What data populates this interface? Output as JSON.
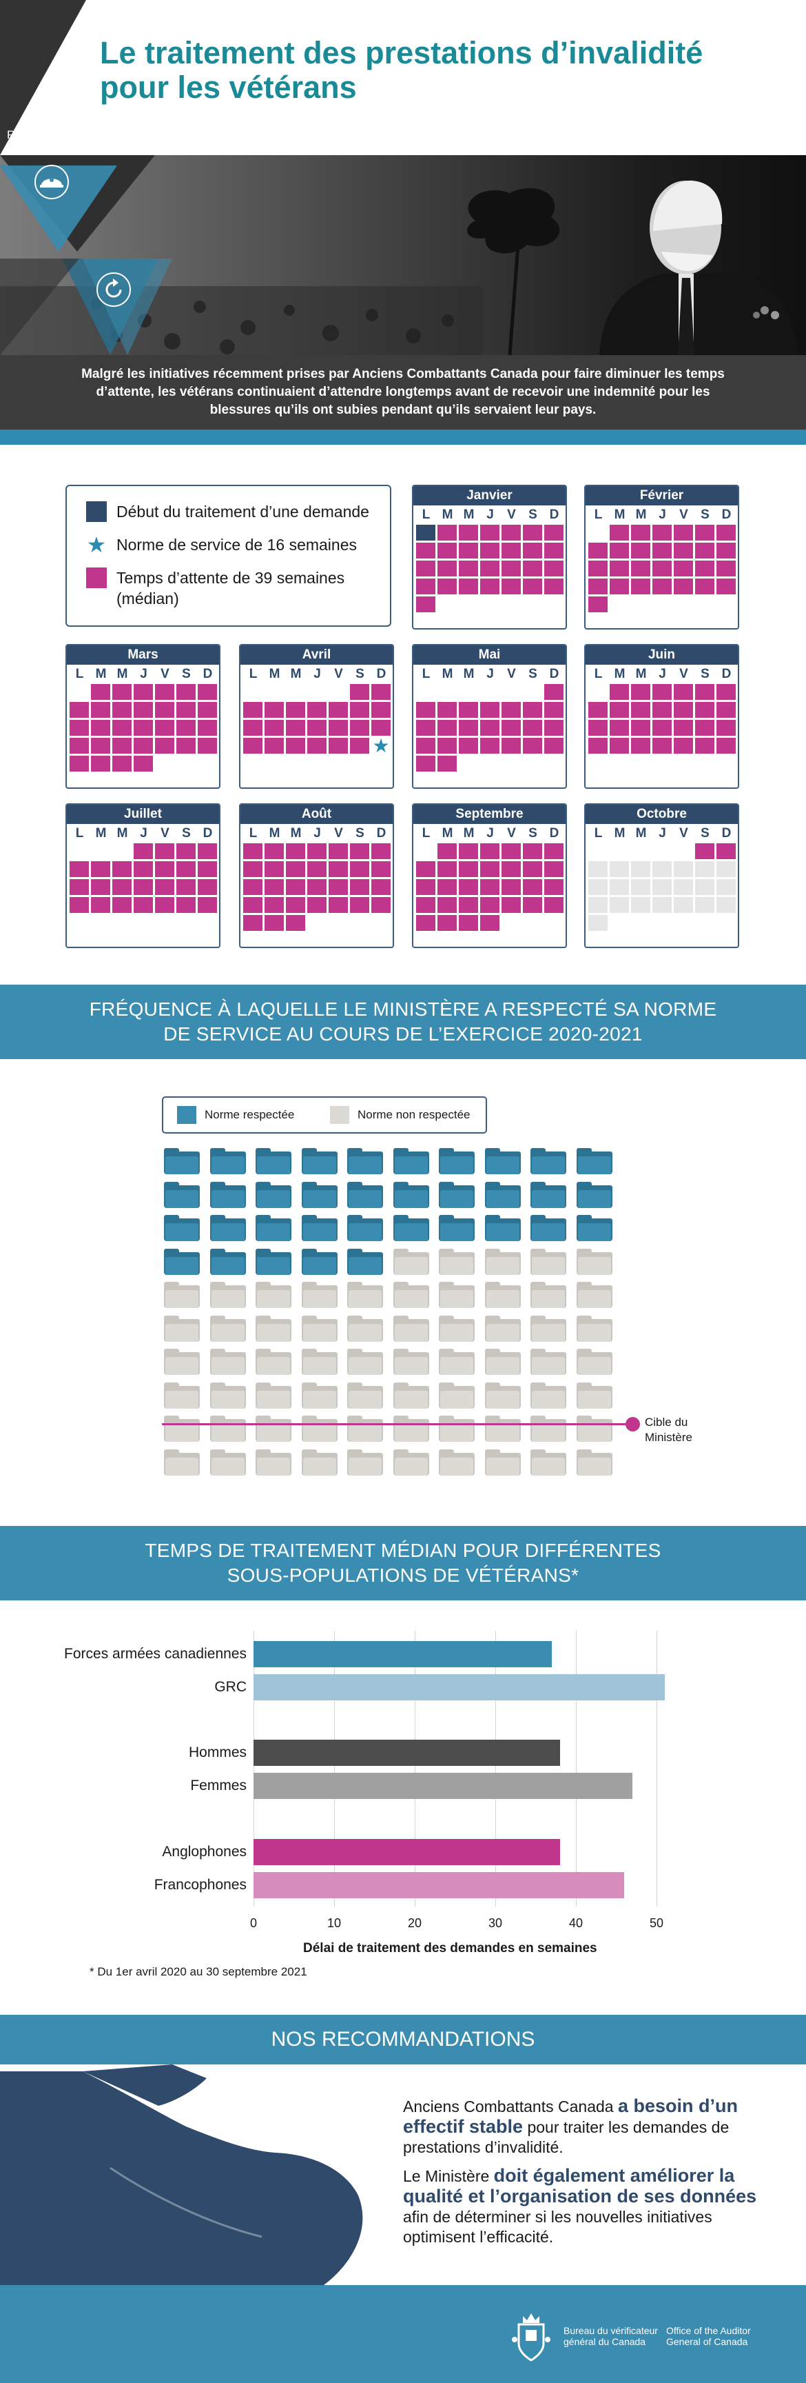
{
  "header": {
    "title": "Le traitement des prestations d’invalidité pour les vétérans",
    "series": "Rapports 2022",
    "icons": [
      "helmet-icon",
      "refresh-icon"
    ]
  },
  "intro": {
    "text": "Malgré les initiatives récemment prises par Anciens Combattants Canada pour faire diminuer les temps d’attente, les vétérans continuaient d’attendre longtemps avant de recevoir une indemnité pour les blessures qu’ils ont subies pendant qu’ils servaient leur pays."
  },
  "calendar_legend": {
    "start": "Début du traitement d’une demande",
    "standard": "Norme de service de 16 semaines",
    "median": "Temps d’attente de 39 semaines (médian)"
  },
  "colors": {
    "start": "#2f4a6b",
    "wait": "#c0368c",
    "empty": "#e6e6e6",
    "met": "#3a8cb0",
    "unmet": "#dcdad5",
    "banner": "#3a8cb0",
    "title": "#1a8a96"
  },
  "calendar": {
    "day_labels": [
      "L",
      "M",
      "M",
      "J",
      "V",
      "S",
      "D"
    ],
    "months": [
      {
        "name": "Janvier"
      },
      {
        "name": "Février"
      },
      {
        "name": "Mars"
      },
      {
        "name": "Avril"
      },
      {
        "name": "Mai"
      },
      {
        "name": "Juin"
      },
      {
        "name": "Juillet"
      },
      {
        "name": "Août"
      },
      {
        "name": "Septembre"
      },
      {
        "name": "Octobre"
      }
    ]
  },
  "section2": {
    "title_line1": "FRÉQUENCE À LAQUELLE LE MINISTÈRE A RESPECTÉ SA NORME",
    "title_line2": "DE SERVICE AU COURS DE L’EXERCICE 2020-2021",
    "legend_met": "Norme respectée",
    "legend_unmet": "Norme non respectée",
    "target_line1": "Cible du",
    "target_line2": "Ministère",
    "met_count": 35,
    "total_count": 100
  },
  "section3": {
    "title_line1": "TEMPS DE TRAITEMENT MÉDIAN POUR DIFFÉRENTES",
    "title_line2": "SOUS-POPULATIONS DE VÉTÉRANS*",
    "footnote": "* Du 1er avril 2020 au 30 septembre 2021"
  },
  "chart_data": {
    "type": "bar",
    "orientation": "horizontal",
    "categories": [
      "Forces armées canadiennes",
      "GRC",
      "Hommes",
      "Femmes",
      "Anglophones",
      "Francophones"
    ],
    "values": [
      37,
      51,
      38,
      47,
      38,
      46
    ],
    "colors": [
      "#3a8cb0",
      "#9fc4d8",
      "#4d4d4d",
      "#a0a0a0",
      "#c0368c",
      "#d68cbd"
    ],
    "xlabel": "Délai de traitement des demandes en semaines",
    "xlim": [
      0,
      55
    ],
    "xticks": [
      0,
      10,
      20,
      30,
      40,
      50
    ],
    "grid": true
  },
  "recommendations": {
    "title": "NOS RECOMMANDATIONS",
    "p1_a": "Anciens Combattants Canada ",
    "p1_em": "a besoin d’un effectif stable",
    "p1_b": " pour traiter les demandes de prestations d’invalidité.",
    "p2_a": "Le Ministère ",
    "p2_em": "doit également améliorer la qualité et l’organisation de ses données",
    "p2_b": " afin de déterminer si les nouvelles initiatives optimisent l’efficacité."
  },
  "footer": {
    "org_fr": "Bureau du vérificateur général du Canada",
    "org_en": "Office of the Auditor General of Canada"
  }
}
